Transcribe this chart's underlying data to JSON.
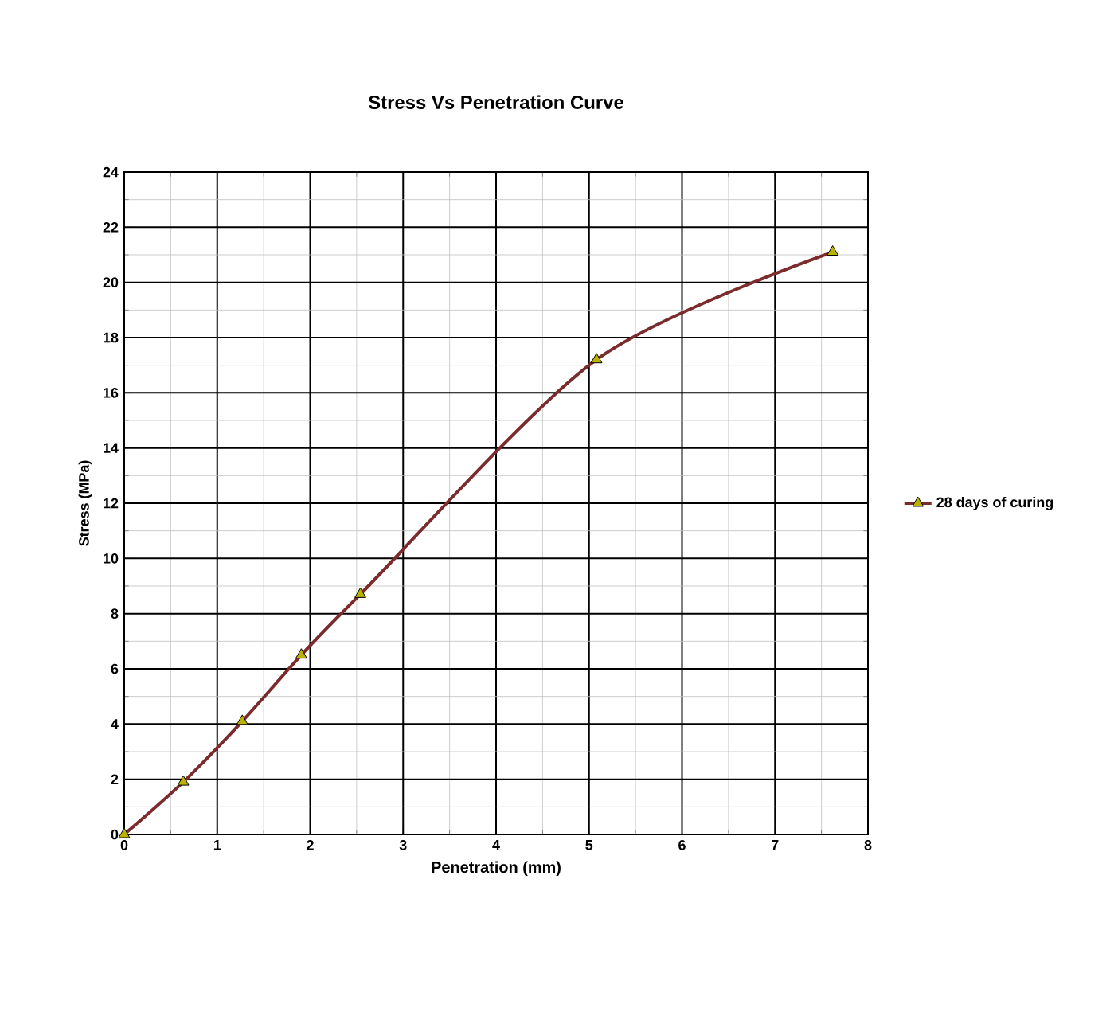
{
  "chart_data": {
    "type": "line",
    "title": "Stress Vs Penetration Curve",
    "xlabel": "Penetration (mm)",
    "ylabel": "Stress (MPa)",
    "x": [
      0,
      0.635,
      1.27,
      1.905,
      2.54,
      5.08,
      7.62
    ],
    "series": [
      {
        "name": "28 days of curing",
        "color": "#7b2b2b",
        "values": [
          0,
          1.9,
          4.1,
          6.5,
          8.7,
          17.2,
          21.1
        ]
      }
    ],
    "xlim": [
      0,
      8
    ],
    "ylim": [
      0,
      24
    ],
    "xticks": [
      0,
      1,
      2,
      3,
      4,
      5,
      6,
      7,
      8
    ],
    "yticks": [
      0,
      2,
      4,
      6,
      8,
      10,
      12,
      14,
      16,
      18,
      20,
      22,
      24
    ],
    "grid": true,
    "legend": "right",
    "marker": "triangle",
    "line_style": "solid"
  }
}
